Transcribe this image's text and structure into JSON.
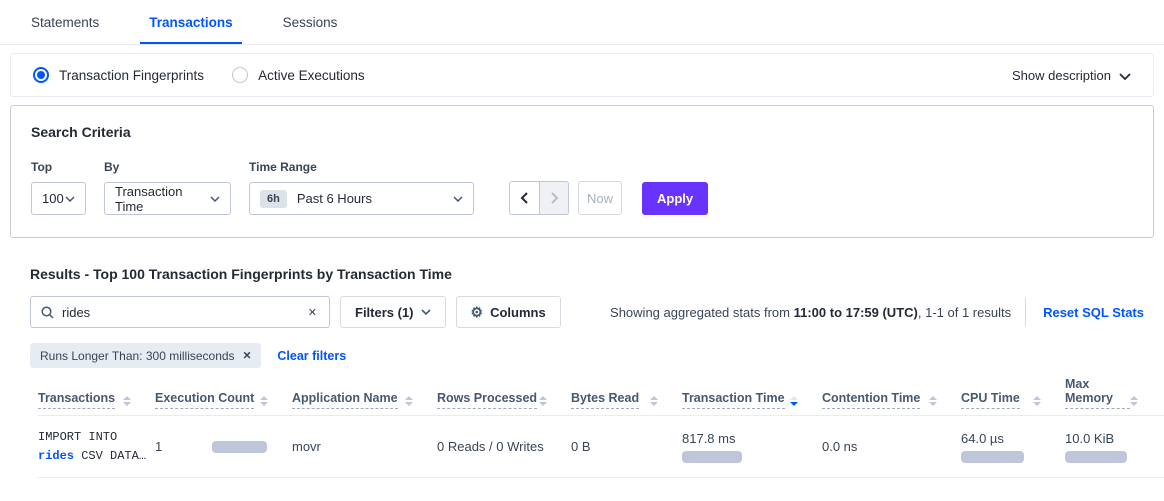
{
  "colors": {
    "accent_blue": "#0055FF",
    "apply_purple": "#6933FF",
    "bar_fill": "#C0C6D9"
  },
  "tabs": [
    {
      "label": "Statements"
    },
    {
      "label": "Transactions"
    },
    {
      "label": "Sessions"
    }
  ],
  "view_toggle": {
    "fingerprints_label": "Transaction Fingerprints",
    "active_exec_label": "Active Executions",
    "show_description_label": "Show description"
  },
  "search_criteria": {
    "title": "Search Criteria",
    "top_label": "Top",
    "top_value": "100",
    "by_label": "By",
    "by_value": "Transaction Time",
    "time_range_label": "Time Range",
    "time_range_badge": "6h",
    "time_range_value": "Past 6 Hours",
    "now_label": "Now",
    "apply_label": "Apply"
  },
  "results": {
    "heading": "Results - Top 100 Transaction Fingerprints by Transaction Time",
    "search_value": "rides",
    "filters_label": "Filters (1)",
    "columns_label": "Columns",
    "stats_prefix": "Showing aggregated stats from ",
    "stats_range": "11:00 to 17:59 (UTC)",
    "stats_suffix": ", 1-1 of 1 results",
    "reset_link": "Reset SQL Stats",
    "filter_tag": "Runs Longer Than: 300 milliseconds",
    "clear_filters": "Clear filters"
  },
  "table": {
    "columns": [
      {
        "label": "Transactions"
      },
      {
        "label": "Execution Count"
      },
      {
        "label": "Application Name"
      },
      {
        "label": "Rows Processed"
      },
      {
        "label": "Bytes Read"
      },
      {
        "label": "Transaction Time",
        "sort": "desc"
      },
      {
        "label": "Contention Time"
      },
      {
        "label": "CPU Time"
      },
      {
        "label": "Max Memory"
      }
    ],
    "rows": [
      {
        "transaction_line1": "IMPORT INTO",
        "transaction_link": "rides",
        "transaction_line2_rest": " CSV DATA…",
        "execution_count": "1",
        "execution_count_bar": 55,
        "application_name": "movr",
        "rows_processed": "0 Reads / 0 Writes",
        "bytes_read": "0 B",
        "transaction_time": "817.8 ms",
        "transaction_time_bar": 60,
        "contention_time": "0.0 ns",
        "cpu_time": "64.0 µs",
        "cpu_time_bar": 63,
        "max_memory": "10.0 KiB",
        "max_memory_bar": 62
      }
    ]
  }
}
